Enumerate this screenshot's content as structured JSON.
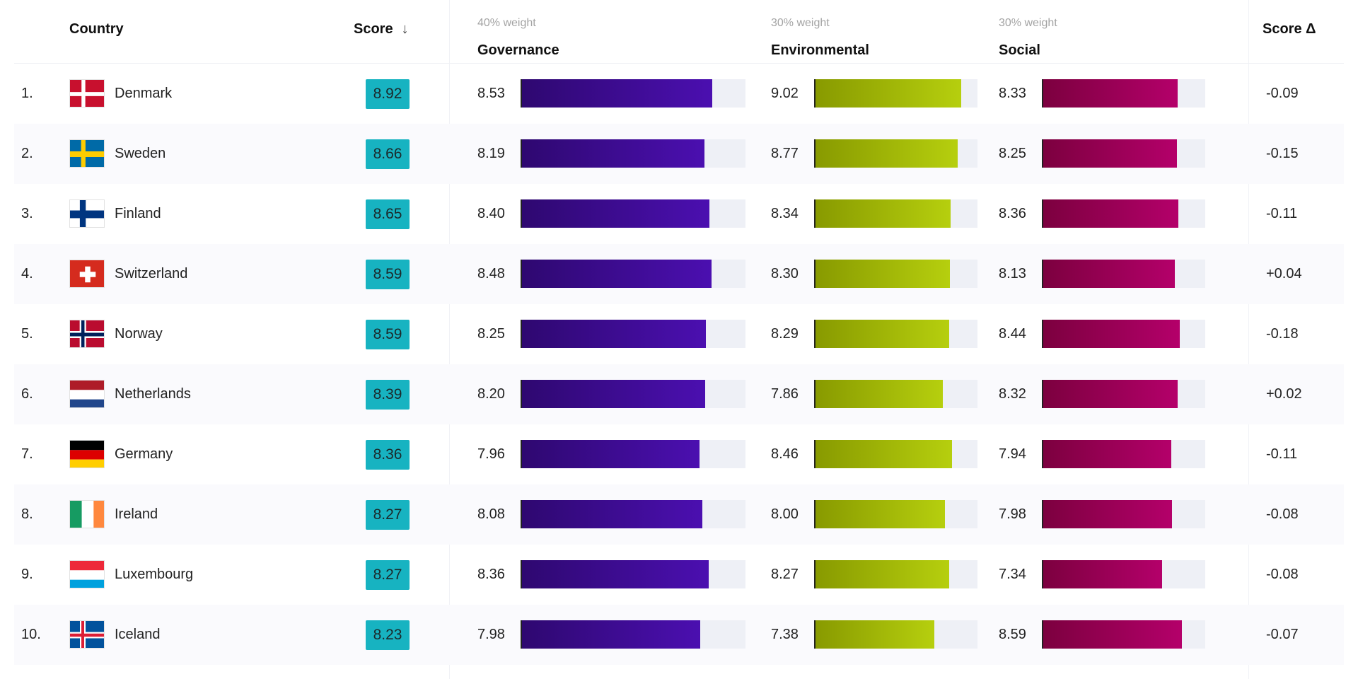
{
  "header": {
    "country": "Country",
    "score": "Score",
    "score_arrow": "↓",
    "governance_weight": "40% weight",
    "governance": "Governance",
    "environmental_weight": "30% weight",
    "environmental": "Environmental",
    "social_weight": "30% weight",
    "social": "Social",
    "score_delta": "Score Δ"
  },
  "colors": {
    "score_badge": "#17b3c1",
    "governance": "#3d0c99",
    "environmental": "#a6bf0a",
    "social": "#9c0057"
  },
  "chart_data": {
    "type": "table",
    "columns": [
      "Country",
      "Score",
      "Governance",
      "Environmental",
      "Social",
      "Score Δ"
    ],
    "bar_max": 10,
    "rows": [
      {
        "rank": "1.",
        "country": "Denmark",
        "flag": "flag-denmark",
        "score": "8.92",
        "governance": 8.53,
        "environmental": 9.02,
        "social": 8.33,
        "delta": "-0.09"
      },
      {
        "rank": "2.",
        "country": "Sweden",
        "flag": "flag-sweden",
        "score": "8.66",
        "governance": 8.19,
        "environmental": 8.77,
        "social": 8.25,
        "delta": "-0.15"
      },
      {
        "rank": "3.",
        "country": "Finland",
        "flag": "flag-finland",
        "score": "8.65",
        "governance": 8.4,
        "environmental": 8.34,
        "social": 8.36,
        "delta": "-0.11"
      },
      {
        "rank": "4.",
        "country": "Switzerland",
        "flag": "flag-switzerland",
        "score": "8.59",
        "governance": 8.48,
        "environmental": 8.3,
        "social": 8.13,
        "delta": "+0.04"
      },
      {
        "rank": "5.",
        "country": "Norway",
        "flag": "flag-norway",
        "score": "8.59",
        "governance": 8.25,
        "environmental": 8.29,
        "social": 8.44,
        "delta": "-0.18"
      },
      {
        "rank": "6.",
        "country": "Netherlands",
        "flag": "flag-netherlands",
        "score": "8.39",
        "governance": 8.2,
        "environmental": 7.86,
        "social": 8.32,
        "delta": "+0.02"
      },
      {
        "rank": "7.",
        "country": "Germany",
        "flag": "flag-germany",
        "score": "8.36",
        "governance": 7.96,
        "environmental": 8.46,
        "social": 7.94,
        "delta": "-0.11"
      },
      {
        "rank": "8.",
        "country": "Ireland",
        "flag": "flag-ireland",
        "score": "8.27",
        "governance": 8.08,
        "environmental": 8.0,
        "social": 7.98,
        "delta": "-0.08"
      },
      {
        "rank": "9.",
        "country": "Luxembourg",
        "flag": "flag-luxembourg",
        "score": "8.27",
        "governance": 8.36,
        "environmental": 8.27,
        "social": 7.34,
        "delta": "-0.08"
      },
      {
        "rank": "10.",
        "country": "Iceland",
        "flag": "flag-iceland",
        "score": "8.23",
        "governance": 7.98,
        "environmental": 7.38,
        "social": 8.59,
        "delta": "-0.07"
      }
    ]
  }
}
